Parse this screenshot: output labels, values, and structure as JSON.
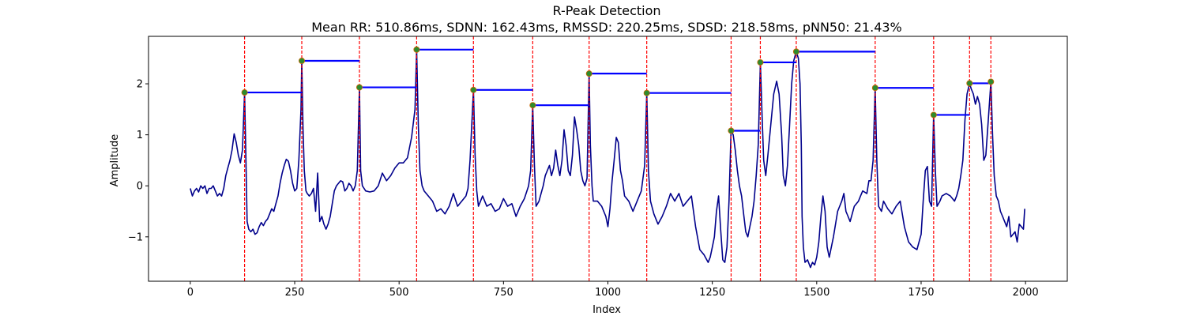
{
  "chart_data": {
    "type": "line",
    "title": "R-Peak Detection",
    "subtitle": "Mean RR: 510.86ms, SDNN: 162.43ms, RMSSD: 220.25ms, SDSD: 218.58ms, pNN50: 21.43%",
    "xlabel": "Index",
    "ylabel": "Amplitude",
    "xlim": [
      -100,
      2100
    ],
    "ylim": [
      -1.87,
      2.93
    ],
    "x_ticks": [
      0,
      250,
      500,
      750,
      1000,
      1250,
      1500,
      1750,
      2000
    ],
    "x_tick_labels": [
      "0",
      "250",
      "500",
      "750",
      "1000",
      "1250",
      "1500",
      "1750",
      "2000"
    ],
    "y_ticks": [
      -1,
      0,
      1,
      2
    ],
    "y_tick_labels": [
      "−1",
      "0",
      "1",
      "2"
    ],
    "grid": false,
    "colors": {
      "signal": "#00008b",
      "peak_marker": "#2e8b2e",
      "peak_edge": "#cc6600",
      "peak_line": "#ff0000",
      "rr_bar": "#0000ff"
    },
    "signal": [
      [
        0,
        -0.05
      ],
      [
        5,
        -0.2
      ],
      [
        10,
        -0.1
      ],
      [
        15,
        -0.05
      ],
      [
        20,
        -0.12
      ],
      [
        25,
        0.0
      ],
      [
        30,
        -0.05
      ],
      [
        35,
        0.0
      ],
      [
        40,
        -0.15
      ],
      [
        45,
        -0.05
      ],
      [
        50,
        -0.05
      ],
      [
        55,
        0.0
      ],
      [
        60,
        -0.1
      ],
      [
        65,
        -0.2
      ],
      [
        70,
        -0.15
      ],
      [
        75,
        -0.2
      ],
      [
        80,
        -0.05
      ],
      [
        85,
        0.2
      ],
      [
        90,
        0.35
      ],
      [
        95,
        0.5
      ],
      [
        100,
        0.7
      ],
      [
        105,
        1.02
      ],
      [
        110,
        0.85
      ],
      [
        115,
        0.6
      ],
      [
        120,
        0.45
      ],
      [
        125,
        0.7
      ],
      [
        130,
        1.83
      ],
      [
        133,
        0.6
      ],
      [
        136,
        -0.7
      ],
      [
        140,
        -0.85
      ],
      [
        145,
        -0.9
      ],
      [
        150,
        -0.85
      ],
      [
        155,
        -0.95
      ],
      [
        160,
        -0.92
      ],
      [
        165,
        -0.8
      ],
      [
        170,
        -0.72
      ],
      [
        175,
        -0.78
      ],
      [
        180,
        -0.7
      ],
      [
        185,
        -0.65
      ],
      [
        190,
        -0.55
      ],
      [
        195,
        -0.45
      ],
      [
        200,
        -0.5
      ],
      [
        205,
        -0.35
      ],
      [
        210,
        -0.2
      ],
      [
        215,
        0.05
      ],
      [
        220,
        0.25
      ],
      [
        225,
        0.4
      ],
      [
        230,
        0.52
      ],
      [
        235,
        0.48
      ],
      [
        240,
        0.3
      ],
      [
        245,
        0.05
      ],
      [
        250,
        -0.1
      ],
      [
        255,
        -0.05
      ],
      [
        260,
        0.5
      ],
      [
        265,
        1.5
      ],
      [
        267,
        2.45
      ],
      [
        270,
        1.1
      ],
      [
        273,
        0.3
      ],
      [
        277,
        -0.1
      ],
      [
        280,
        -0.15
      ],
      [
        285,
        -0.2
      ],
      [
        290,
        -0.15
      ],
      [
        295,
        -0.05
      ],
      [
        300,
        -0.5
      ],
      [
        305,
        0.25
      ],
      [
        310,
        -0.7
      ],
      [
        315,
        -0.6
      ],
      [
        320,
        -0.75
      ],
      [
        325,
        -0.85
      ],
      [
        330,
        -0.75
      ],
      [
        335,
        -0.6
      ],
      [
        340,
        -0.35
      ],
      [
        345,
        -0.1
      ],
      [
        350,
        0.0
      ],
      [
        355,
        0.05
      ],
      [
        360,
        0.1
      ],
      [
        365,
        0.08
      ],
      [
        370,
        -0.1
      ],
      [
        375,
        -0.05
      ],
      [
        380,
        0.05
      ],
      [
        385,
        0.0
      ],
      [
        390,
        -0.1
      ],
      [
        395,
        0.0
      ],
      [
        400,
        0.3
      ],
      [
        405,
        1.93
      ],
      [
        408,
        0.3
      ],
      [
        412,
        0.0
      ],
      [
        420,
        -0.1
      ],
      [
        430,
        -0.12
      ],
      [
        440,
        -0.1
      ],
      [
        450,
        0.0
      ],
      [
        460,
        0.25
      ],
      [
        470,
        0.1
      ],
      [
        480,
        0.2
      ],
      [
        490,
        0.35
      ],
      [
        500,
        0.45
      ],
      [
        510,
        0.45
      ],
      [
        520,
        0.55
      ],
      [
        530,
        0.95
      ],
      [
        538,
        1.5
      ],
      [
        542,
        2.67
      ],
      [
        546,
        1.2
      ],
      [
        550,
        0.3
      ],
      [
        555,
        0.0
      ],
      [
        560,
        -0.1
      ],
      [
        570,
        -0.2
      ],
      [
        580,
        -0.3
      ],
      [
        590,
        -0.5
      ],
      [
        600,
        -0.45
      ],
      [
        610,
        -0.55
      ],
      [
        620,
        -0.4
      ],
      [
        630,
        -0.15
      ],
      [
        640,
        -0.4
      ],
      [
        650,
        -0.3
      ],
      [
        660,
        -0.2
      ],
      [
        665,
        -0.05
      ],
      [
        670,
        0.5
      ],
      [
        678,
        1.88
      ],
      [
        682,
        0.6
      ],
      [
        686,
        -0.1
      ],
      [
        690,
        -0.4
      ],
      [
        700,
        -0.2
      ],
      [
        710,
        -0.4
      ],
      [
        720,
        -0.35
      ],
      [
        730,
        -0.5
      ],
      [
        740,
        -0.45
      ],
      [
        750,
        -0.25
      ],
      [
        760,
        -0.4
      ],
      [
        770,
        -0.35
      ],
      [
        780,
        -0.6
      ],
      [
        790,
        -0.4
      ],
      [
        800,
        -0.25
      ],
      [
        810,
        0.0
      ],
      [
        815,
        0.3
      ],
      [
        820,
        1.58
      ],
      [
        824,
        0.4
      ],
      [
        828,
        -0.4
      ],
      [
        835,
        -0.3
      ],
      [
        840,
        -0.15
      ],
      [
        845,
        0.0
      ],
      [
        850,
        0.2
      ],
      [
        855,
        0.3
      ],
      [
        860,
        0.4
      ],
      [
        865,
        0.2
      ],
      [
        870,
        0.35
      ],
      [
        875,
        0.7
      ],
      [
        880,
        0.4
      ],
      [
        885,
        0.2
      ],
      [
        890,
        0.5
      ],
      [
        895,
        1.1
      ],
      [
        900,
        0.8
      ],
      [
        905,
        0.3
      ],
      [
        910,
        0.2
      ],
      [
        915,
        0.6
      ],
      [
        920,
        1.35
      ],
      [
        925,
        1.1
      ],
      [
        930,
        0.8
      ],
      [
        935,
        0.3
      ],
      [
        940,
        0.1
      ],
      [
        945,
        0.0
      ],
      [
        950,
        0.15
      ],
      [
        955,
        2.2
      ],
      [
        958,
        0.8
      ],
      [
        962,
        0.0
      ],
      [
        965,
        -0.3
      ],
      [
        975,
        -0.3
      ],
      [
        985,
        -0.4
      ],
      [
        995,
        -0.6
      ],
      [
        1000,
        -0.8
      ],
      [
        1005,
        -0.45
      ],
      [
        1010,
        0.1
      ],
      [
        1015,
        0.5
      ],
      [
        1020,
        0.95
      ],
      [
        1025,
        0.85
      ],
      [
        1030,
        0.3
      ],
      [
        1035,
        0.1
      ],
      [
        1040,
        -0.2
      ],
      [
        1050,
        -0.3
      ],
      [
        1060,
        -0.5
      ],
      [
        1070,
        -0.3
      ],
      [
        1080,
        -0.1
      ],
      [
        1088,
        0.4
      ],
      [
        1093,
        1.82
      ],
      [
        1097,
        0.3
      ],
      [
        1102,
        -0.3
      ],
      [
        1110,
        -0.55
      ],
      [
        1120,
        -0.75
      ],
      [
        1130,
        -0.6
      ],
      [
        1140,
        -0.4
      ],
      [
        1150,
        -0.15
      ],
      [
        1160,
        -0.3
      ],
      [
        1170,
        -0.15
      ],
      [
        1180,
        -0.4
      ],
      [
        1190,
        -0.3
      ],
      [
        1200,
        -0.2
      ],
      [
        1210,
        -0.8
      ],
      [
        1220,
        -1.25
      ],
      [
        1230,
        -1.35
      ],
      [
        1240,
        -1.5
      ],
      [
        1245,
        -1.4
      ],
      [
        1250,
        -1.2
      ],
      [
        1255,
        -1.0
      ],
      [
        1260,
        -0.5
      ],
      [
        1265,
        -0.2
      ],
      [
        1270,
        -0.85
      ],
      [
        1275,
        -1.45
      ],
      [
        1280,
        -1.5
      ],
      [
        1285,
        -1.2
      ],
      [
        1290,
        -0.3
      ],
      [
        1295,
        1.08
      ],
      [
        1300,
        1.0
      ],
      [
        1305,
        0.7
      ],
      [
        1310,
        0.3
      ],
      [
        1315,
        0.0
      ],
      [
        1320,
        -0.2
      ],
      [
        1325,
        -0.55
      ],
      [
        1330,
        -0.9
      ],
      [
        1335,
        -1.0
      ],
      [
        1340,
        -0.8
      ],
      [
        1345,
        -0.6
      ],
      [
        1350,
        -0.3
      ],
      [
        1355,
        0.2
      ],
      [
        1360,
        0.8
      ],
      [
        1365,
        2.42
      ],
      [
        1369,
        1.4
      ],
      [
        1373,
        0.5
      ],
      [
        1378,
        0.2
      ],
      [
        1383,
        0.6
      ],
      [
        1390,
        1.2
      ],
      [
        1397,
        1.8
      ],
      [
        1404,
        2.05
      ],
      [
        1410,
        1.8
      ],
      [
        1416,
        1.0
      ],
      [
        1420,
        0.2
      ],
      [
        1425,
        0.0
      ],
      [
        1430,
        0.4
      ],
      [
        1435,
        1.2
      ],
      [
        1440,
        2.0
      ],
      [
        1445,
        2.45
      ],
      [
        1451,
        2.63
      ],
      [
        1456,
        2.5
      ],
      [
        1460,
        2.0
      ],
      [
        1463,
        0.8
      ],
      [
        1465,
        -0.6
      ],
      [
        1468,
        -1.2
      ],
      [
        1472,
        -1.5
      ],
      [
        1478,
        -1.45
      ],
      [
        1485,
        -1.6
      ],
      [
        1490,
        -1.5
      ],
      [
        1495,
        -1.55
      ],
      [
        1500,
        -1.4
      ],
      [
        1505,
        -1.1
      ],
      [
        1510,
        -0.6
      ],
      [
        1515,
        -0.2
      ],
      [
        1520,
        -0.5
      ],
      [
        1525,
        -1.2
      ],
      [
        1530,
        -1.4
      ],
      [
        1540,
        -1.0
      ],
      [
        1550,
        -0.5
      ],
      [
        1560,
        -0.3
      ],
      [
        1565,
        -0.15
      ],
      [
        1570,
        -0.5
      ],
      [
        1575,
        -0.6
      ],
      [
        1580,
        -0.7
      ],
      [
        1590,
        -0.4
      ],
      [
        1600,
        -0.3
      ],
      [
        1605,
        -0.2
      ],
      [
        1610,
        -0.1
      ],
      [
        1620,
        -0.15
      ],
      [
        1625,
        0.1
      ],
      [
        1630,
        0.1
      ],
      [
        1635,
        0.5
      ],
      [
        1640,
        1.92
      ],
      [
        1644,
        0.5
      ],
      [
        1648,
        -0.4
      ],
      [
        1655,
        -0.5
      ],
      [
        1660,
        -0.3
      ],
      [
        1670,
        -0.45
      ],
      [
        1680,
        -0.55
      ],
      [
        1690,
        -0.4
      ],
      [
        1700,
        -0.3
      ],
      [
        1710,
        -0.8
      ],
      [
        1720,
        -1.1
      ],
      [
        1730,
        -1.2
      ],
      [
        1740,
        -1.25
      ],
      [
        1750,
        -0.95
      ],
      [
        1755,
        -0.3
      ],
      [
        1760,
        0.3
      ],
      [
        1765,
        0.38
      ],
      [
        1770,
        -0.3
      ],
      [
        1775,
        -0.4
      ],
      [
        1780,
        1.39
      ],
      [
        1784,
        0.3
      ],
      [
        1788,
        -0.4
      ],
      [
        1795,
        -0.3
      ],
      [
        1800,
        -0.2
      ],
      [
        1810,
        -0.15
      ],
      [
        1820,
        -0.2
      ],
      [
        1830,
        -0.3
      ],
      [
        1835,
        -0.2
      ],
      [
        1840,
        -0.05
      ],
      [
        1845,
        0.2
      ],
      [
        1850,
        0.5
      ],
      [
        1855,
        1.3
      ],
      [
        1860,
        1.8
      ],
      [
        1866,
        2.01
      ],
      [
        1870,
        1.9
      ],
      [
        1875,
        1.8
      ],
      [
        1880,
        1.6
      ],
      [
        1885,
        1.75
      ],
      [
        1890,
        1.6
      ],
      [
        1895,
        1.2
      ],
      [
        1900,
        0.5
      ],
      [
        1905,
        0.6
      ],
      [
        1910,
        1.2
      ],
      [
        1917,
        2.04
      ],
      [
        1921,
        1.0
      ],
      [
        1925,
        0.2
      ],
      [
        1930,
        -0.2
      ],
      [
        1935,
        -0.3
      ],
      [
        1940,
        -0.5
      ],
      [
        1945,
        -0.6
      ],
      [
        1950,
        -0.7
      ],
      [
        1955,
        -0.8
      ],
      [
        1960,
        -0.6
      ],
      [
        1965,
        -1.0
      ],
      [
        1970,
        -0.95
      ],
      [
        1975,
        -0.9
      ],
      [
        1980,
        -1.1
      ],
      [
        1985,
        -0.75
      ],
      [
        1990,
        -0.8
      ],
      [
        1995,
        -0.85
      ],
      [
        1998,
        -0.45
      ]
    ],
    "peaks": [
      {
        "x": 130,
        "y": 1.83,
        "rr_end": 267
      },
      {
        "x": 267,
        "y": 2.45,
        "rr_end": 405
      },
      {
        "x": 405,
        "y": 1.93,
        "rr_end": 542
      },
      {
        "x": 542,
        "y": 2.67,
        "rr_end": 678
      },
      {
        "x": 678,
        "y": 1.88,
        "rr_end": 820
      },
      {
        "x": 820,
        "y": 1.58,
        "rr_end": 955
      },
      {
        "x": 955,
        "y": 2.2,
        "rr_end": 1093
      },
      {
        "x": 1093,
        "y": 1.82,
        "rr_end": 1295
      },
      {
        "x": 1295,
        "y": 1.08,
        "rr_end": 1365
      },
      {
        "x": 1365,
        "y": 2.42,
        "rr_end": 1451
      },
      {
        "x": 1451,
        "y": 2.63,
        "rr_end": 1640
      },
      {
        "x": 1640,
        "y": 1.92,
        "rr_end": 1780
      },
      {
        "x": 1780,
        "y": 1.39,
        "rr_end": 1866
      },
      {
        "x": 1866,
        "y": 2.01,
        "rr_end": 1917
      },
      {
        "x": 1917,
        "y": 2.04,
        "rr_end": null
      }
    ]
  }
}
